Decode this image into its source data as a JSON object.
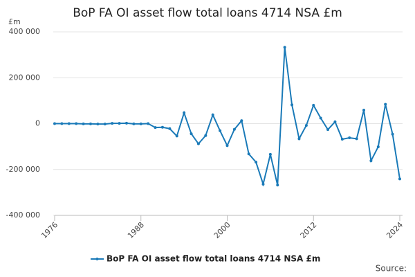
{
  "chart_data": {
    "type": "line",
    "title": "BoP FA OI asset flow total loans 4714 NSA £m",
    "y_unit": "£m",
    "source": "Source:",
    "x": [
      1976,
      1977,
      1978,
      1979,
      1980,
      1981,
      1982,
      1983,
      1984,
      1985,
      1986,
      1987,
      1988,
      1989,
      1990,
      1991,
      1992,
      1993,
      1994,
      1995,
      1996,
      1997,
      1998,
      1999,
      2000,
      2001,
      2002,
      2003,
      2004,
      2005,
      2006,
      2007,
      2008,
      2009,
      2010,
      2011,
      2012,
      2013,
      2014,
      2015,
      2016,
      2017,
      2018,
      2019,
      2020,
      2021,
      2022,
      2023,
      2024
    ],
    "series": [
      {
        "name": "BoP FA OI asset flow total loans 4714 NSA £m",
        "color": "#1a7ab8",
        "values": [
          0,
          0,
          0,
          0,
          -1000,
          -1000,
          -2000,
          -2000,
          1000,
          1000,
          2000,
          -1000,
          -1000,
          0,
          -17000,
          -16000,
          -22000,
          -54000,
          47000,
          -44000,
          -88000,
          -52000,
          38000,
          -31000,
          -96000,
          -25000,
          13000,
          -132000,
          -168000,
          -264000,
          -134000,
          -268000,
          333000,
          82000,
          -66000,
          -8000,
          80000,
          24000,
          -26000,
          8000,
          -68000,
          -62000,
          -66000,
          59000,
          -162000,
          -101000,
          84000,
          -46000,
          -241000
        ]
      }
    ],
    "xlim": [
      1976,
      2024
    ],
    "xticks": [
      1976,
      1988,
      2000,
      2012,
      2024
    ],
    "ylim": [
      -400000,
      400000
    ],
    "yticks": [
      {
        "value": -400000,
        "label": "-400 000"
      },
      {
        "value": -200000,
        "label": "-200 000"
      },
      {
        "value": 0,
        "label": "0"
      },
      {
        "value": 200000,
        "label": "200 000"
      },
      {
        "value": 400000,
        "label": "400 000"
      }
    ],
    "grid": true
  }
}
